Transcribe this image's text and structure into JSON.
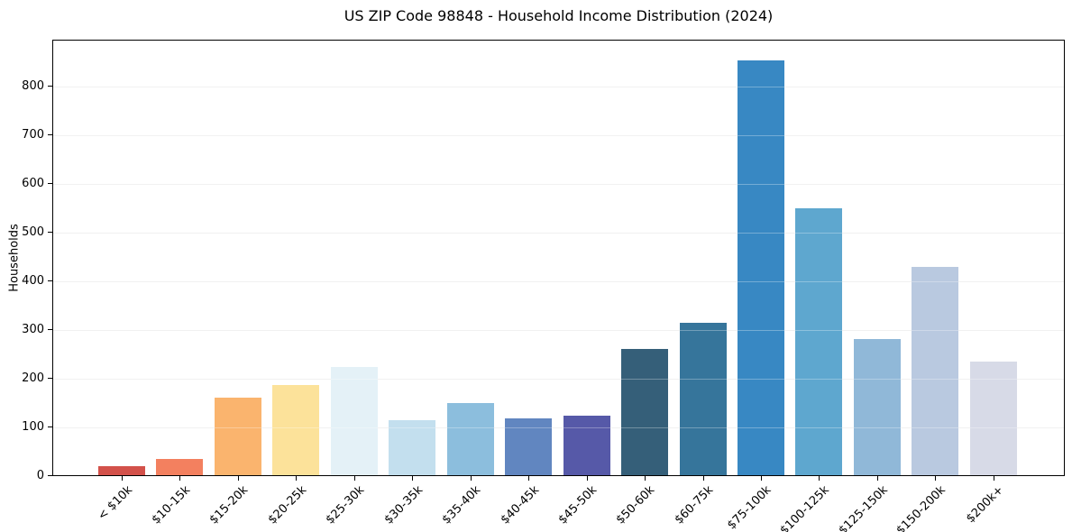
{
  "page": {
    "background": "#ffffff"
  },
  "chart_data": {
    "type": "bar",
    "title": "US ZIP Code 98848 - Household Income Distribution (2024)",
    "xlabel": "",
    "ylabel": "Households",
    "categories": [
      "< $10k",
      "$10-15k",
      "$15-20k",
      "$20-25k",
      "$25-30k",
      "$30-35k",
      "$35-40k",
      "$40-45k",
      "$45-50k",
      "$50-60k",
      "$60-75k",
      "$75-100k",
      "$100-125k",
      "$125-150k",
      "$150-200k",
      "$200k+"
    ],
    "values": [
      18,
      33,
      159,
      185,
      222,
      113,
      148,
      116,
      123,
      260,
      312,
      851,
      548,
      280,
      428,
      234
    ],
    "bar_colors": [
      "#d3514a",
      "#f3805f",
      "#fab46e",
      "#fce29a",
      "#e4f1f7",
      "#c3dfee",
      "#8cbedd",
      "#6186c0",
      "#5659a8",
      "#355f79",
      "#36759b",
      "#3888c3",
      "#5ea7cf",
      "#90b8d8",
      "#b9c9e0",
      "#d7dae7"
    ],
    "yticks": [
      0,
      100,
      200,
      300,
      400,
      500,
      600,
      700,
      800
    ],
    "ylim": [
      0,
      896
    ],
    "grid": "horizontal",
    "grid_color": "#ebebeb",
    "axis_color": "#000000",
    "text_color": "#000000",
    "legend": "none"
  }
}
